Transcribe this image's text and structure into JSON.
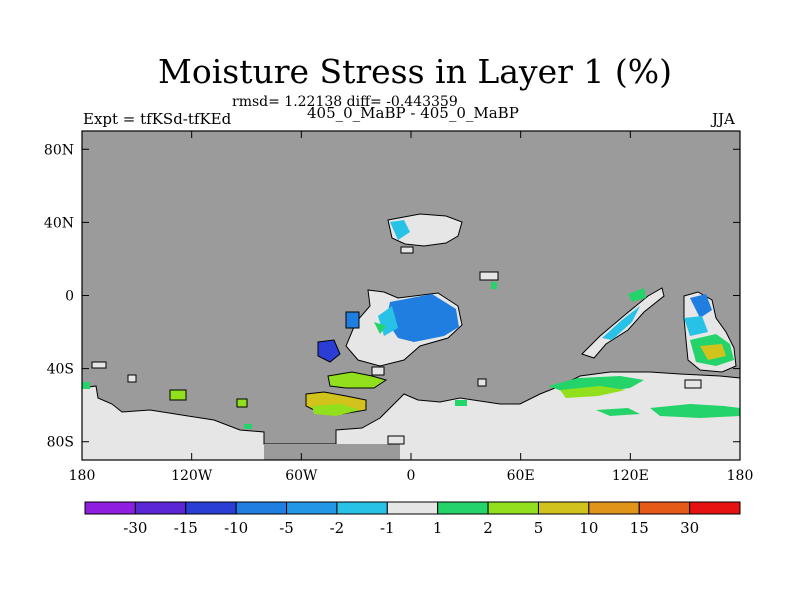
{
  "chart_data": {
    "type": "heatmap",
    "title": "Moisture Stress in Layer 1 (%)",
    "stats": "rmsd= 1.22138 diff= -0.443359",
    "left_label": "Expt = tfKSd-tfKEd",
    "subtitle": "405_0_MaBP - 405_0_MaBP",
    "right_label": "JJA",
    "x_ticks": [
      "180",
      "120W",
      "60W",
      "0",
      "60E",
      "120E",
      "180"
    ],
    "y_ticks": [
      "80N",
      "40N",
      "0",
      "40S",
      "80S"
    ],
    "x_range": [
      -180,
      180
    ],
    "y_range": [
      -90,
      90
    ],
    "land_fill": "#9b9b9b",
    "colorbar": {
      "labels": [
        "-30",
        "-15",
        "-10",
        "-5",
        "-2",
        "-1",
        "1",
        "2",
        "5",
        "10",
        "15",
        "30"
      ],
      "colors": [
        "#8e1fe0",
        "#5a26d6",
        "#2a3ed6",
        "#1f7ee0",
        "#2397e4",
        "#27c2e6",
        "#e6e6e6",
        "#24d46a",
        "#92e01d",
        "#d2c21c",
        "#e1941a",
        "#e65a17",
        "#e61212"
      ]
    }
  }
}
